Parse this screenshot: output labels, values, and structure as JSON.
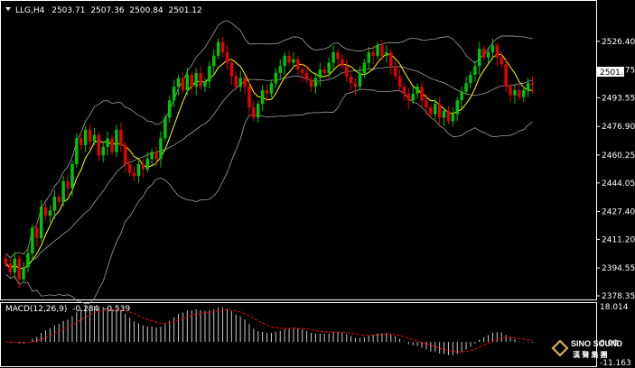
{
  "header": {
    "symbol": "LLG,H4",
    "open": "2503.71",
    "high": "2507.36",
    "low": "2500.84",
    "close": "2501.12"
  },
  "macd": {
    "label": "MACD(12,26,9)",
    "main": "-0.284",
    "signal": "-0.539",
    "axis_top": "18.014",
    "axis_zero": "0.00",
    "axis_bottom": "-11.163"
  },
  "price_axis": {
    "ticks": [
      "2526.40",
      "2509.75",
      "2493.55",
      "2476.90",
      "2460.25",
      "2444.05",
      "2427.40",
      "2411.20",
      "2394.55",
      "2378.35"
    ],
    "current": "2501.12"
  },
  "logo": {
    "brand": "SINO SOUND",
    "chinese": "漢 聲 集 團"
  },
  "colors": {
    "background": "#000000",
    "bull_candle": "#00c800",
    "bear_candle": "#e60000",
    "bands": "#a0a0a0",
    "ma": "#ffff00",
    "macd_hist": "#c8c8c8",
    "macd_signal": "#ff0000"
  },
  "chart_data": [
    {
      "type": "candlestick",
      "title": "LLG,H4",
      "ylim": [
        2378.35,
        2541
      ],
      "y_ticks": [
        2526.4,
        2509.75,
        2493.55,
        2476.9,
        2460.25,
        2444.05,
        2427.4,
        2411.2,
        2394.55,
        2378.35
      ],
      "current_price": 2501.12,
      "overlays": [
        "Bollinger Bands (upper, middle, lower)",
        "Moving Average (yellow)"
      ],
      "grid": false,
      "closes": [
        2397,
        2392,
        2400,
        2388,
        2395,
        2403,
        2418,
        2412,
        2430,
        2425,
        2428,
        2436,
        2433,
        2445,
        2441,
        2455,
        2470,
        2466,
        2475,
        2468,
        2472,
        2460,
        2465,
        2470,
        2462,
        2475,
        2466,
        2455,
        2450,
        2448,
        2455,
        2452,
        2458,
        2462,
        2458,
        2470,
        2482,
        2492,
        2500,
        2505,
        2498,
        2507,
        2500,
        2508,
        2500,
        2503,
        2512,
        2518,
        2526,
        2520,
        2514,
        2506,
        2500,
        2505,
        2500,
        2488,
        2482,
        2490,
        2498,
        2496,
        2502,
        2508,
        2512,
        2518,
        2514,
        2516,
        2510,
        2508,
        2504,
        2500,
        2505,
        2510,
        2508,
        2514,
        2520,
        2516,
        2512,
        2506,
        2502,
        2500,
        2508,
        2514,
        2520,
        2518,
        2524,
        2518,
        2520,
        2512,
        2506,
        2500,
        2496,
        2492,
        2496,
        2500,
        2492,
        2488,
        2484,
        2490,
        2482,
        2486,
        2480,
        2484,
        2492,
        2497,
        2502,
        2507,
        2512,
        2522,
        2517,
        2520,
        2524,
        2517,
        2513,
        2500,
        2495,
        2498,
        2494,
        2498,
        2502,
        2501
      ]
    },
    {
      "type": "bar",
      "title": "MACD(12,26,9)",
      "ylim": [
        -11.163,
        18.014
      ],
      "main_value": -0.284,
      "signal_value": -0.539
    }
  ]
}
